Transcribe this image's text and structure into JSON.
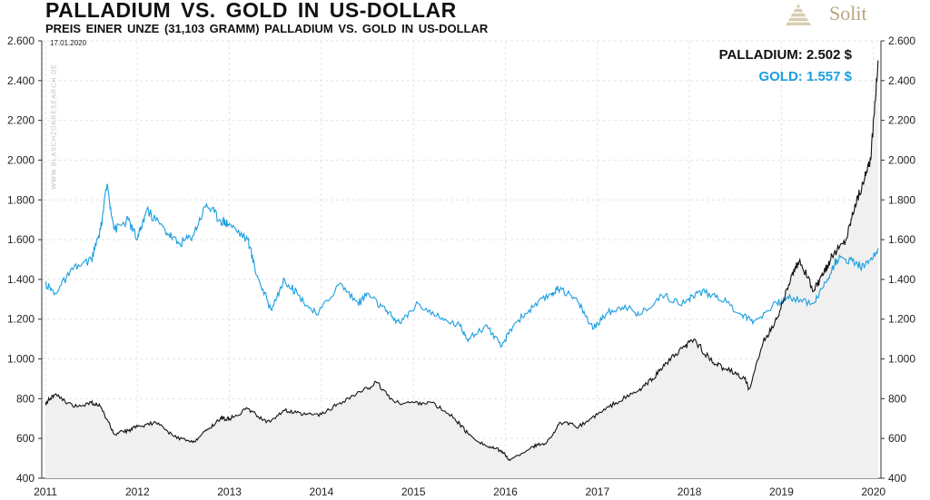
{
  "header": {
    "title": "PALLADIUM  VS. GOLD  IN  US-DOLLAR",
    "subtitle": "PREIS EINER UNZE (31,103 GRAMM)  PALLADIUM  VS. GOLD  IN  US-DOLLAR",
    "logo": "Solit",
    "date": "17.01.2020",
    "watermark": "WWW.BLASCHZOKRESEARCH.DE"
  },
  "legend": {
    "palladium": "PALLADIUM: 2.502 $",
    "gold": "GOLD: 1.557 $"
  },
  "colors": {
    "palladium": "#111111",
    "gold": "#1a9ee0",
    "area": "#f0f0f0"
  },
  "chart_data": {
    "type": "line",
    "title": "PALLADIUM  VS. GOLD  IN  US-DOLLAR",
    "xlim": [
      2011,
      2020.05
    ],
    "ylim": [
      400,
      2600
    ],
    "x_ticks": [
      "2011",
      "2012",
      "2013",
      "2014",
      "2015",
      "2016",
      "2017",
      "2018",
      "2019",
      "2020"
    ],
    "y_ticks": [
      "400",
      "600",
      "800",
      "1.000",
      "1.200",
      "1.400",
      "1.600",
      "1.800",
      "2.000",
      "2.200",
      "2.400",
      "2.600"
    ],
    "grid": true,
    "legend_position": "top-right",
    "series": [
      {
        "name": "Gold",
        "x": [
          2011.0,
          2011.1,
          2011.3,
          2011.5,
          2011.6,
          2011.67,
          2011.75,
          2011.9,
          2012.0,
          2012.1,
          2012.3,
          2012.45,
          2012.6,
          2012.75,
          2012.9,
          2013.0,
          2013.2,
          2013.3,
          2013.45,
          2013.6,
          2013.75,
          2013.95,
          2014.2,
          2014.4,
          2014.5,
          2014.7,
          2014.85,
          2015.05,
          2015.3,
          2015.5,
          2015.6,
          2015.8,
          2015.95,
          2016.1,
          2016.3,
          2016.5,
          2016.6,
          2016.8,
          2016.95,
          2017.1,
          2017.3,
          2017.45,
          2017.7,
          2017.95,
          2018.1,
          2018.3,
          2018.55,
          2018.7,
          2018.95,
          2019.1,
          2019.35,
          2019.5,
          2019.6,
          2019.75,
          2019.9,
          2020.05
        ],
        "values": [
          1380,
          1330,
          1450,
          1500,
          1650,
          1880,
          1650,
          1700,
          1600,
          1750,
          1650,
          1580,
          1620,
          1780,
          1700,
          1680,
          1600,
          1420,
          1250,
          1400,
          1320,
          1220,
          1380,
          1280,
          1330,
          1240,
          1180,
          1280,
          1200,
          1170,
          1100,
          1170,
          1060,
          1180,
          1260,
          1330,
          1360,
          1280,
          1150,
          1230,
          1270,
          1220,
          1320,
          1280,
          1340,
          1320,
          1230,
          1190,
          1280,
          1310,
          1280,
          1400,
          1500,
          1500,
          1460,
          1557
        ]
      },
      {
        "name": "Palladium",
        "x": [
          2011.0,
          2011.1,
          2011.3,
          2011.5,
          2011.6,
          2011.75,
          2011.9,
          2012.0,
          2012.2,
          2012.4,
          2012.6,
          2012.75,
          2012.9,
          2013.0,
          2013.2,
          2013.4,
          2013.6,
          2013.8,
          2014.0,
          2014.2,
          2014.45,
          2014.6,
          2014.8,
          2015.0,
          2015.2,
          2015.45,
          2015.6,
          2015.8,
          2015.95,
          2016.05,
          2016.3,
          2016.45,
          2016.6,
          2016.8,
          2017.0,
          2017.2,
          2017.45,
          2017.6,
          2017.75,
          2017.95,
          2018.05,
          2018.25,
          2018.4,
          2018.6,
          2018.65,
          2018.8,
          2018.95,
          2019.1,
          2019.2,
          2019.35,
          2019.45,
          2019.55,
          2019.7,
          2019.8,
          2019.9,
          2019.97,
          2020.05
        ],
        "values": [
          780,
          820,
          760,
          780,
          760,
          620,
          640,
          660,
          680,
          610,
          580,
          640,
          700,
          700,
          750,
          680,
          740,
          720,
          720,
          780,
          840,
          880,
          780,
          780,
          780,
          700,
          620,
          560,
          540,
          490,
          560,
          580,
          680,
          660,
          720,
          780,
          840,
          900,
          980,
          1060,
          1100,
          980,
          950,
          900,
          850,
          1080,
          1200,
          1400,
          1500,
          1340,
          1420,
          1520,
          1600,
          1780,
          1900,
          2000,
          2502
        ]
      }
    ]
  }
}
